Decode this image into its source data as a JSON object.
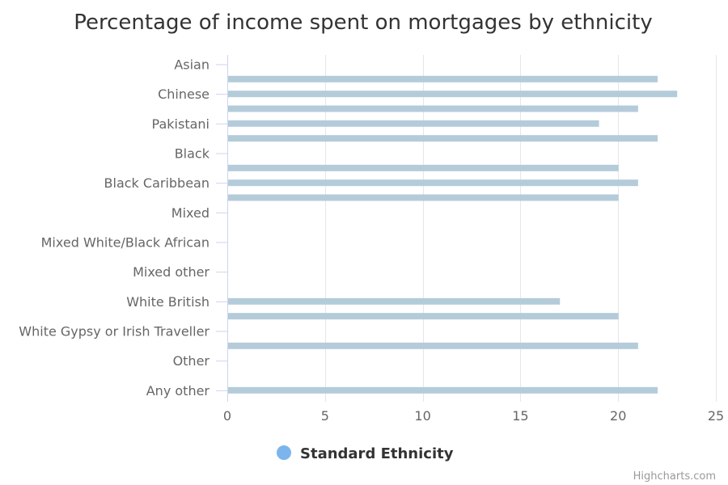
{
  "credits": "Highcharts.com",
  "chart_data": {
    "type": "bar",
    "orientation": "horizontal",
    "title": "Percentage of income spent on mortgages by ethnicity",
    "xlabel": "",
    "ylabel": "",
    "categories": [
      "Asian",
      "Chinese",
      "Pakistani",
      "Black",
      "Black Caribbean",
      "Mixed",
      "Mixed White/Black African",
      "Mixed other",
      "White British",
      "White Gypsy or Irish Traveller",
      "Other",
      "Any other"
    ],
    "rows": [
      {
        "label": "Asian",
        "value": null
      },
      {
        "label": "",
        "value": 22
      },
      {
        "label": "Chinese",
        "value": 23
      },
      {
        "label": "",
        "value": 21
      },
      {
        "label": "Pakistani",
        "value": 19
      },
      {
        "label": "",
        "value": 22
      },
      {
        "label": "Black",
        "value": null
      },
      {
        "label": "",
        "value": 20
      },
      {
        "label": "Black Caribbean",
        "value": 21
      },
      {
        "label": "",
        "value": 20
      },
      {
        "label": "Mixed",
        "value": null
      },
      {
        "label": "",
        "value": null
      },
      {
        "label": "Mixed White/Black African",
        "value": null
      },
      {
        "label": "",
        "value": null
      },
      {
        "label": "Mixed other",
        "value": null
      },
      {
        "label": "",
        "value": null
      },
      {
        "label": "White British",
        "value": 17
      },
      {
        "label": "",
        "value": 20
      },
      {
        "label": "White Gypsy or Irish Traveller",
        "value": null
      },
      {
        "label": "",
        "value": 21
      },
      {
        "label": "Other",
        "value": null
      },
      {
        "label": "",
        "value": null
      },
      {
        "label": "Any other",
        "value": 22
      }
    ],
    "xlim": [
      0,
      25
    ],
    "ticks": [
      0,
      5,
      10,
      15,
      20,
      25
    ],
    "grid": true,
    "series": [
      {
        "name": "Standard Ethnicity",
        "color": "#7cb5ec"
      }
    ],
    "bar_color": "#b4cbda",
    "legend_position": "bottom-center"
  }
}
